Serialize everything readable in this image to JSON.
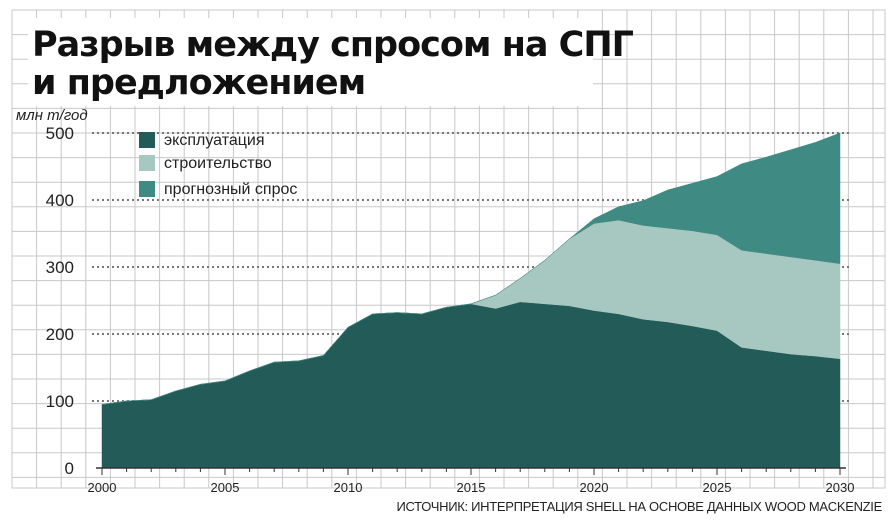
{
  "title_line1": "Разрыв между спросом на СПГ",
  "title_line2": "и предложением",
  "source": "ИСТОЧНИК: ИНТЕРПРЕТАЦИЯ SHELL НА ОСНОВЕ ДАННЫХ WOOD MACKENZIE",
  "colors": {
    "background_grid": "#c8c8c8",
    "exploitation": "#225b58",
    "construction": "#a6c8c1",
    "forecast": "#3f8a82"
  },
  "chart_data": {
    "type": "area",
    "stacked": true,
    "unit": "млн т/год",
    "x": [
      2000,
      2001,
      2002,
      2003,
      2004,
      2005,
      2006,
      2007,
      2008,
      2009,
      2010,
      2011,
      2012,
      2013,
      2014,
      2015,
      2016,
      2017,
      2018,
      2019,
      2020,
      2021,
      2022,
      2023,
      2024,
      2025,
      2026,
      2027,
      2028,
      2029,
      2030
    ],
    "series": [
      {
        "name": "эксплуатация",
        "color": "#225b58",
        "values": [
          95,
          100,
          102,
          115,
          125,
          130,
          145,
          158,
          160,
          168,
          210,
          230,
          232,
          230,
          240,
          245,
          238,
          248,
          245,
          242,
          235,
          230,
          222,
          218,
          212,
          205,
          180,
          175,
          170,
          167,
          163
        ]
      },
      {
        "name": "строительство",
        "color": "#a6c8c1",
        "values": [
          0,
          0,
          0,
          0,
          0,
          0,
          0,
          0,
          0,
          0,
          0,
          0,
          0,
          0,
          0,
          0,
          20,
          35,
          65,
          100,
          130,
          140,
          140,
          140,
          142,
          143,
          145,
          145,
          145,
          143,
          142
        ]
      },
      {
        "name": "прогнозный спрос",
        "color": "#3f8a82",
        "values": [
          0,
          0,
          0,
          0,
          0,
          0,
          0,
          0,
          0,
          0,
          0,
          0,
          0,
          0,
          0,
          0,
          0,
          0,
          0,
          0,
          7,
          20,
          37,
          57,
          71,
          87,
          129,
          144,
          160,
          176,
          195
        ]
      }
    ],
    "xlabel": "",
    "ylabel": "",
    "xlim": [
      2000,
      2030
    ],
    "ylim": [
      0,
      500
    ],
    "xticks": [
      2000,
      2005,
      2010,
      2015,
      2020,
      2025,
      2030
    ],
    "xtick_labels": [
      "2000",
      "2005",
      "2010",
      "2015",
      "2020",
      "2025",
      "2030"
    ],
    "yticks": [
      0,
      100,
      200,
      300,
      400,
      500
    ],
    "ytick_labels": [
      "0",
      "100",
      "200",
      "300",
      "400",
      "500"
    ],
    "grid": true,
    "legend": "top-left"
  }
}
